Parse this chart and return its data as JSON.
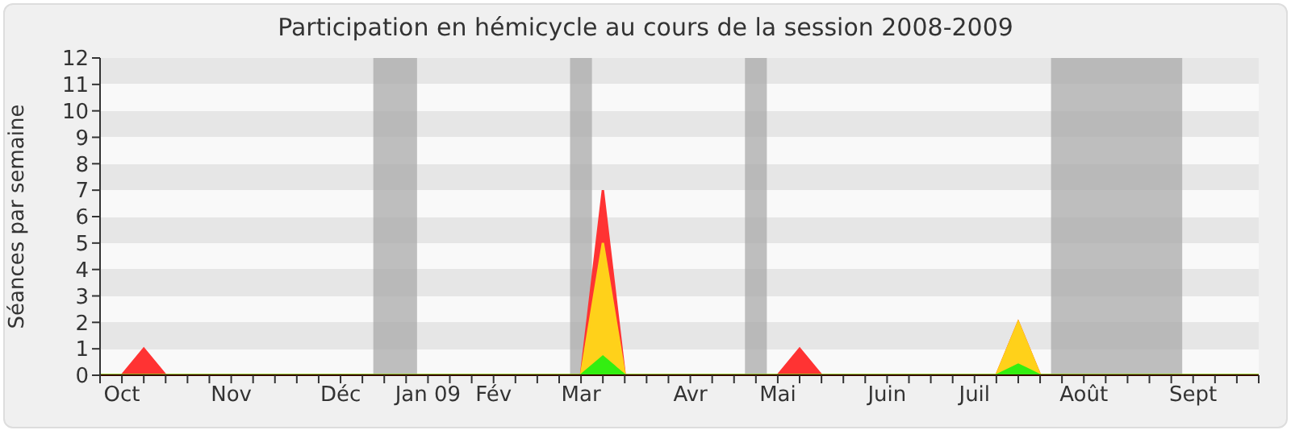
{
  "chart_data": {
    "type": "area",
    "title": "Participation en hémicycle au cours de la session 2008-2009",
    "ylabel": "Séances par semaine",
    "categories": [
      null,
      "Oct",
      null,
      null,
      null,
      null,
      "Nov",
      null,
      null,
      null,
      null,
      "Déc",
      null,
      null,
      null,
      "Jan 09",
      null,
      null,
      "Fév",
      null,
      null,
      null,
      "Mar",
      null,
      null,
      null,
      null,
      "Avr",
      null,
      null,
      null,
      "Mai",
      null,
      null,
      null,
      null,
      "Juin",
      null,
      null,
      null,
      "Juil",
      null,
      null,
      null,
      null,
      "Août",
      null,
      null,
      null,
      null,
      "Sept",
      null,
      null,
      null
    ],
    "series": [
      {
        "color": "#ff3333",
        "values": [
          0,
          0,
          1,
          0,
          0,
          0,
          0,
          0,
          0,
          0,
          0,
          0,
          0,
          0,
          0,
          0,
          0,
          0,
          0,
          0,
          0,
          0,
          0,
          7,
          0,
          0,
          0,
          0,
          0,
          0,
          0,
          0,
          1,
          0,
          0,
          0,
          0,
          0,
          0,
          0,
          0,
          0,
          2,
          0,
          0,
          0,
          0,
          0,
          0,
          0,
          0,
          0,
          0,
          0
        ]
      },
      {
        "color": "#ffd11a",
        "values": [
          0,
          0,
          0,
          0,
          0,
          0,
          0,
          0,
          0,
          0,
          0,
          0,
          0,
          0,
          0,
          0,
          0,
          0,
          0,
          0,
          0,
          0,
          0,
          5,
          0,
          0,
          0,
          0,
          0,
          0,
          0,
          0,
          0,
          0,
          0,
          0,
          0,
          0,
          0,
          0,
          0,
          0,
          2,
          0,
          0,
          0,
          0,
          0,
          0,
          0,
          0,
          0,
          0,
          0
        ]
      },
      {
        "color": "#33ee11",
        "values": [
          0,
          0,
          0,
          0,
          0,
          0,
          0,
          0,
          0,
          0,
          0,
          0,
          0,
          0,
          0,
          0,
          0,
          0,
          0,
          0,
          0,
          0,
          0,
          0.7,
          0,
          0,
          0,
          0,
          0,
          0,
          0,
          0,
          0,
          0,
          0,
          0,
          0,
          0,
          0,
          0,
          0,
          0,
          0.4,
          0,
          0,
          0,
          0,
          0,
          0,
          0,
          0,
          0,
          0,
          0
        ]
      }
    ],
    "ylim": [
      0,
      12
    ],
    "yticks": [
      0,
      1,
      2,
      3,
      4,
      5,
      6,
      7,
      8,
      9,
      10,
      11,
      12
    ],
    "legend": false
  }
}
